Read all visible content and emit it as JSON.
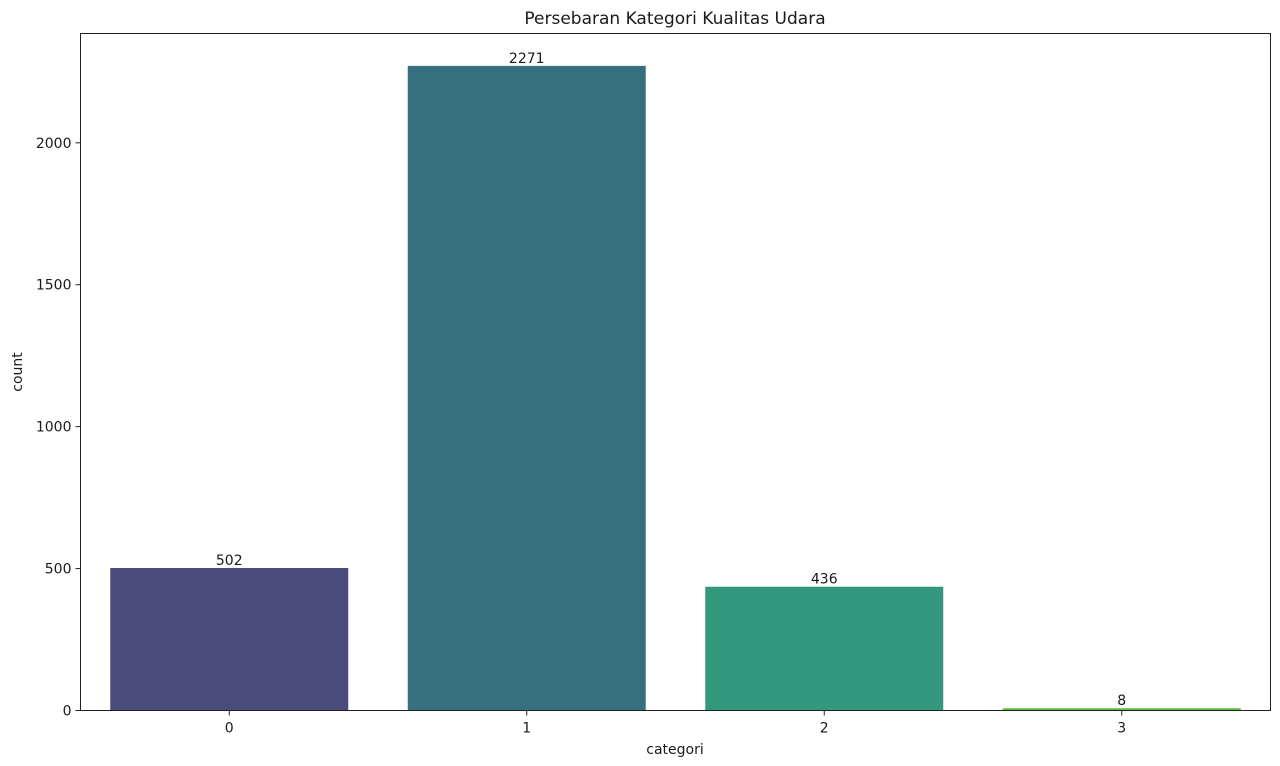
{
  "chart_data": {
    "type": "bar",
    "title": "Persebaran Kategori Kualitas Udara",
    "xlabel": "categori",
    "ylabel": "count",
    "categories": [
      "0",
      "1",
      "2",
      "3"
    ],
    "values": [
      502,
      2271,
      436,
      8
    ],
    "data_labels": [
      "502",
      "2271",
      "436",
      "8"
    ],
    "colors": [
      "#4a4a7b",
      "#36707f",
      "#33977b",
      "#5fb84a"
    ],
    "ylim": [
      0,
      2385
    ],
    "yticks": [
      0,
      500,
      1000,
      1500,
      2000
    ],
    "ytick_labels": [
      "0",
      "500",
      "1000",
      "1500",
      "2000"
    ],
    "grid": false,
    "legend": "none"
  }
}
